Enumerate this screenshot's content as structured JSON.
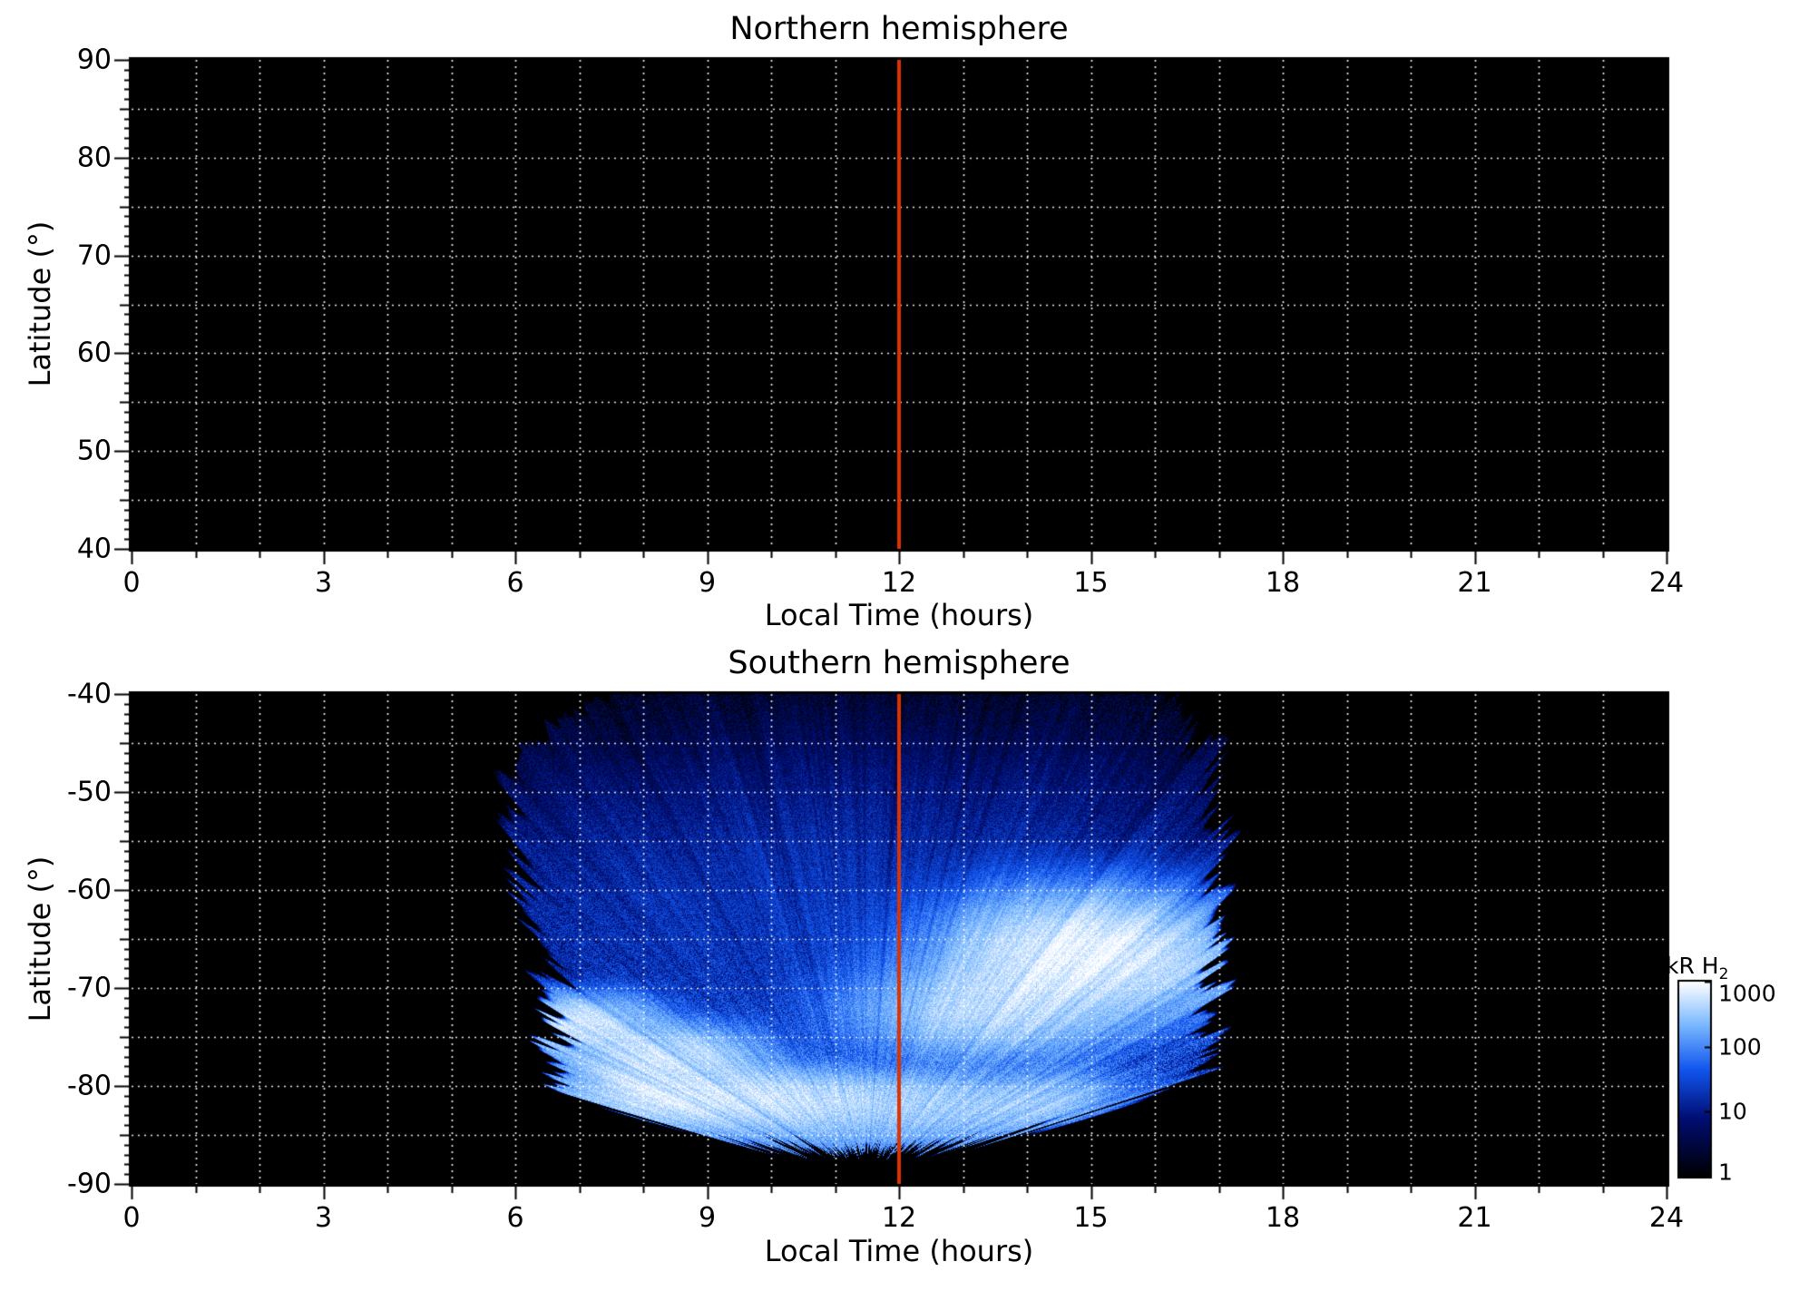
{
  "chart_data": [
    {
      "id": "northern-hemisphere",
      "type": "heatmap",
      "title": "Northern hemisphere",
      "xlabel": "Local Time (hours)",
      "ylabel": "Latitude (°)",
      "xlim": [
        0,
        24
      ],
      "ylim": [
        40,
        90
      ],
      "xticks": [
        0,
        3,
        6,
        9,
        12,
        15,
        18,
        21,
        24
      ],
      "yticks": [
        40,
        50,
        60,
        70,
        80,
        90
      ],
      "grid": {
        "x_step": 1,
        "y_step": 5,
        "style": "dotted",
        "color": "#ffffff"
      },
      "noon_line": {
        "x": 12,
        "color": "#dd3300"
      },
      "background": "#000000",
      "emission": null
    },
    {
      "id": "southern-hemisphere",
      "type": "heatmap",
      "title": "Southern hemisphere",
      "xlabel": "Local Time (hours)",
      "ylabel": "Latitude (°)",
      "xlim": [
        0,
        24
      ],
      "ylim": [
        -90,
        -40
      ],
      "xticks": [
        0,
        3,
        6,
        9,
        12,
        15,
        18,
        21,
        24
      ],
      "yticks": [
        -90,
        -80,
        -70,
        -60,
        -50,
        -40
      ],
      "grid": {
        "x_step": 1,
        "y_step": 5,
        "style": "dotted",
        "color": "#ffffff"
      },
      "noon_line": {
        "x": 12,
        "color": "#dd3300"
      },
      "background": "#000000",
      "colorbar": {
        "label_main": "kR H",
        "label_sub": "2",
        "scale": "log",
        "ticks": [
          1,
          10,
          100,
          1000
        ],
        "colors": [
          "#000000",
          "#000d73",
          "#1155ee",
          "#7ab8ff",
          "#ffffff"
        ],
        "stops": [
          0,
          0.3,
          0.55,
          0.78,
          1
        ]
      },
      "emission": {
        "description": "Speckled diffuse H2 auroral emission filling the dayside (about 06-17 h local time) between -40 and -87 latitude, with a bright dawn-side arc near 7-9 h / -74 to -78, an intense white dusk-side region near 13-16.5 h / -62 to -75, and a pale band near -79 to -84 across 8-14 h.",
        "local_time_extent": [
          5.6,
          17.1
        ],
        "latitude_extent": [
          -86.6,
          -40
        ],
        "background_kR": 1,
        "features": [
          {
            "name": "dawn-arc-upper",
            "t": 7.0,
            "lat": -73.5,
            "sigma_t": 0.65,
            "sigma_lat": 1.6,
            "peak_kR": 700
          },
          {
            "name": "dawn-arc-lower",
            "t": 8.3,
            "lat": -77.0,
            "sigma_t": 0.85,
            "sigma_lat": 1.8,
            "peak_kR": 650
          },
          {
            "name": "dusk-bright-region",
            "t": 15.0,
            "lat": -66.5,
            "sigma_t": 1.25,
            "sigma_lat": 3.4,
            "peak_kR": 1000
          },
          {
            "name": "dusk-bright-extension",
            "t": 13.4,
            "lat": -72.5,
            "sigma_t": 1.2,
            "sigma_lat": 2.8,
            "peak_kR": 500
          },
          {
            "name": "noon-low-lat-band",
            "t": 11.2,
            "lat": -81.3,
            "sigma_t": 2.6,
            "sigma_lat": 1.7,
            "peak_kR": 380
          },
          {
            "name": "morning-low-lat-band",
            "t": 9.0,
            "lat": -80.8,
            "sigma_t": 1.5,
            "sigma_lat": 1.7,
            "peak_kR": 320
          },
          {
            "name": "diffuse-polar-glow",
            "t": 11.5,
            "lat": -62.0,
            "sigma_t": 4.3,
            "sigma_lat": 10.0,
            "peak_kR": 22
          }
        ],
        "limb_band": {
          "t_range": [
            7.0,
            15.5
          ],
          "offset_deg": 2.2,
          "sigma_deg": 1.9,
          "peak_kR": 220
        }
      }
    }
  ]
}
